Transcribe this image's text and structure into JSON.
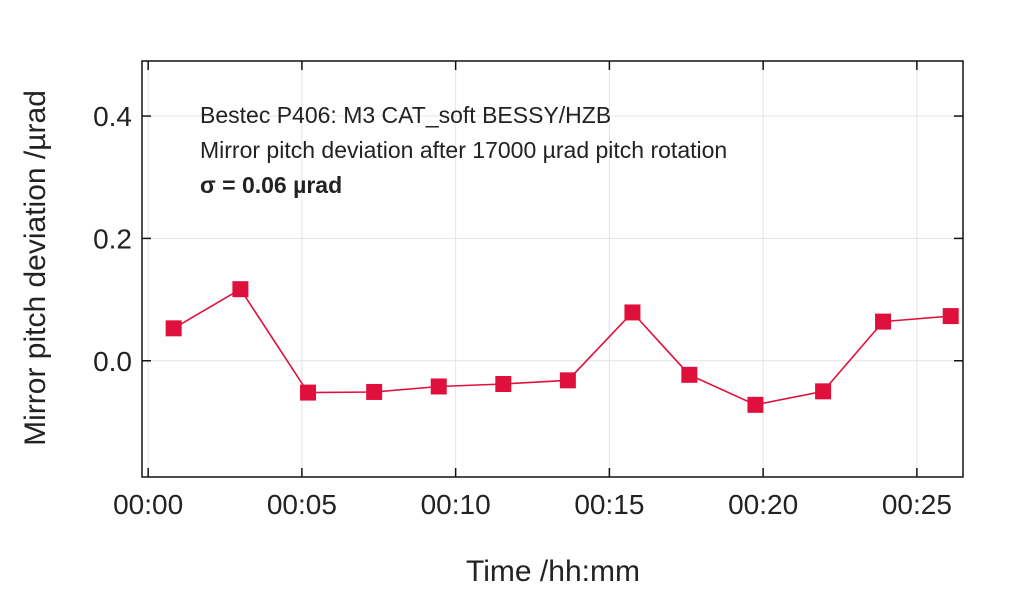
{
  "chart_data": {
    "type": "line",
    "xlabel": "Time /hh:mm",
    "ylabel": "Mirror pitch deviation /µrad",
    "xlim": [
      -0.2,
      26.5
    ],
    "ylim": [
      -0.19,
      0.49
    ],
    "x_ticks": [
      {
        "value": 0,
        "label": "00:00"
      },
      {
        "value": 5,
        "label": "00:05"
      },
      {
        "value": 10,
        "label": "00:10"
      },
      {
        "value": 15,
        "label": "00:15"
      },
      {
        "value": 20,
        "label": "00:20"
      },
      {
        "value": 25,
        "label": "00:25"
      }
    ],
    "y_ticks": [
      {
        "value": 0.4,
        "label": "0.4"
      },
      {
        "value": 0.2,
        "label": "0.2"
      },
      {
        "value": 0.0,
        "label": "0.0"
      }
    ],
    "grid": true,
    "annotations": [
      "Bestec P406: M3 CAT_soft BESSY/HZB",
      "Mirror pitch deviation after 17000 µrad pitch rotation",
      "σ = 0.06 µrad"
    ],
    "series": [
      {
        "color": "#e0103c",
        "marker": "square",
        "x": [
          0.83,
          3.0,
          5.2,
          7.35,
          9.45,
          11.55,
          13.65,
          15.75,
          17.6,
          19.75,
          21.95,
          23.9,
          26.1
        ],
        "y": [
          0.053,
          0.117,
          -0.052,
          -0.051,
          -0.042,
          -0.038,
          -0.032,
          0.079,
          -0.023,
          -0.072,
          -0.05,
          0.064,
          0.073
        ]
      }
    ]
  }
}
